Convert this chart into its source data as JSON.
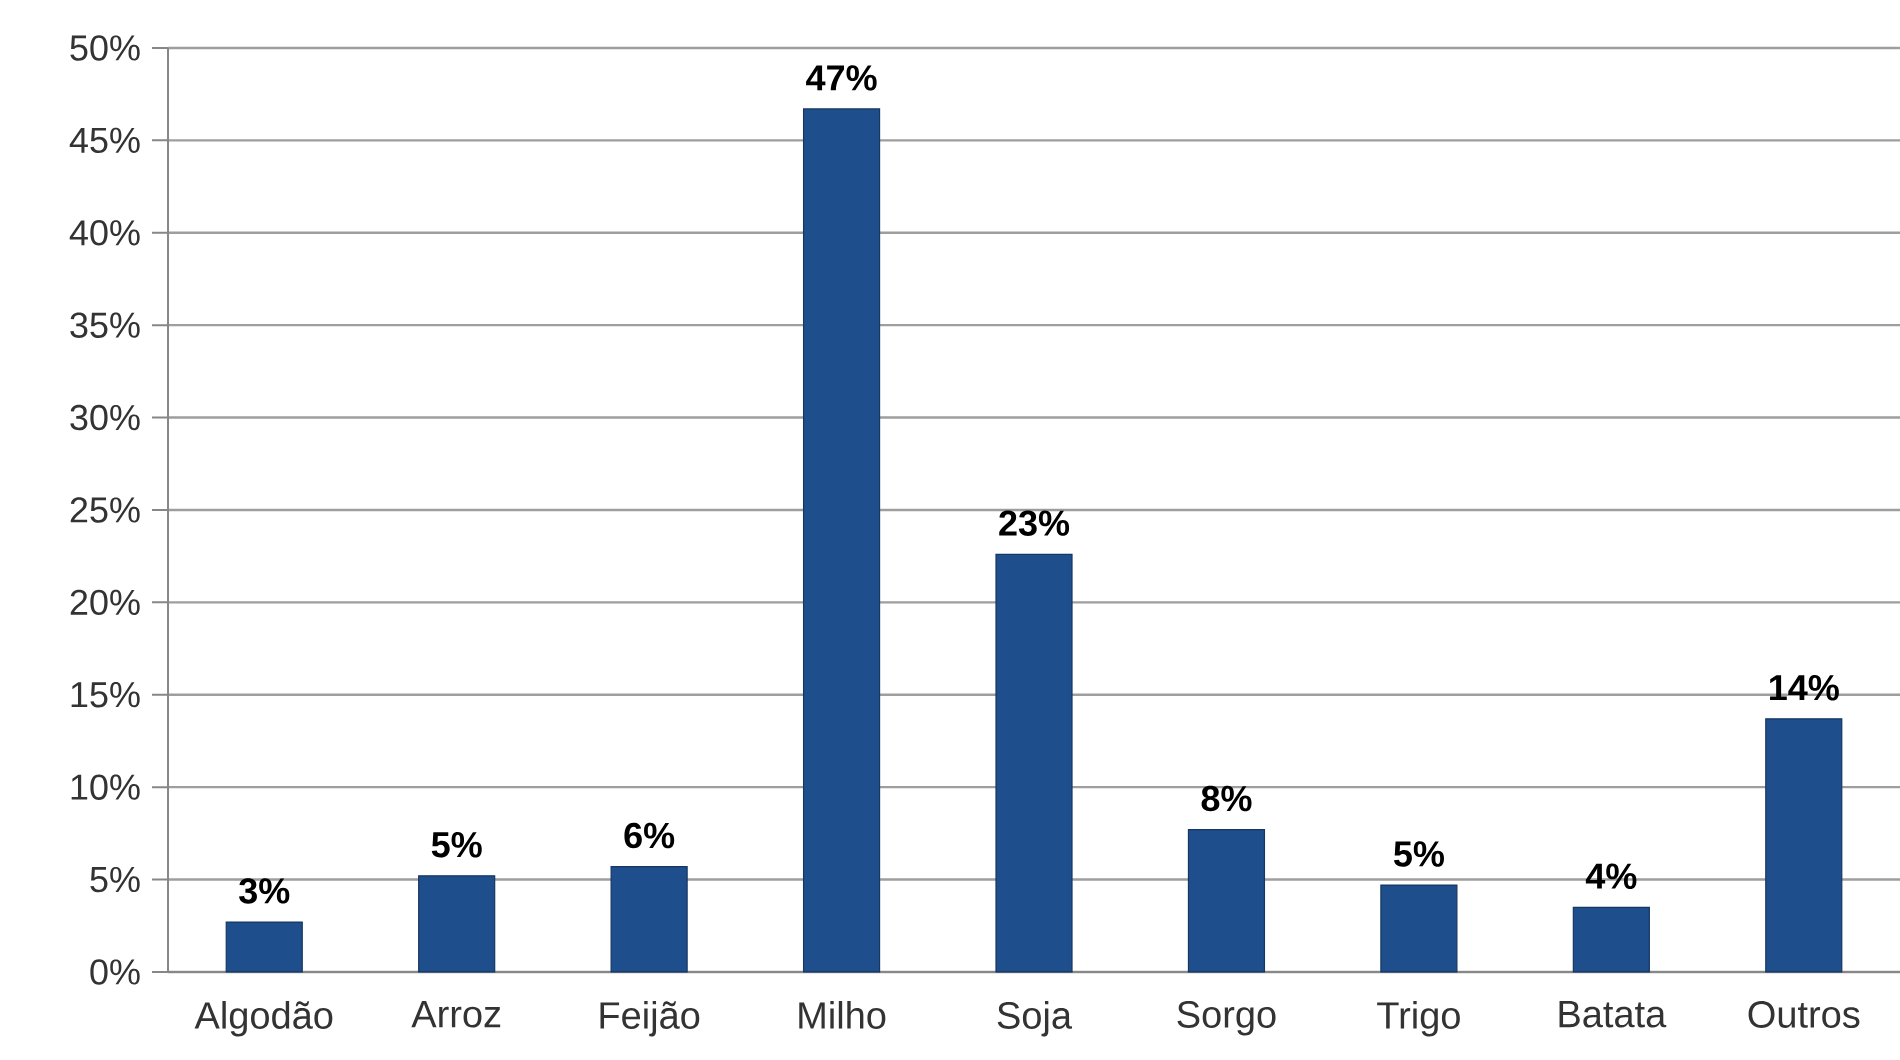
{
  "chart_data": {
    "type": "bar",
    "categories": [
      "Algodão",
      "Arroz",
      "Feijão",
      "Milho",
      "Soja",
      "Sorgo",
      "Trigo",
      "Batata",
      "Outros"
    ],
    "values": [
      2.7,
      5.2,
      5.7,
      46.7,
      22.6,
      7.7,
      4.7,
      3.5,
      13.7
    ],
    "value_labels": [
      "3%",
      "5%",
      "6%",
      "47%",
      "23%",
      "8%",
      "5%",
      "4%",
      "14%"
    ],
    "color": "#1f4e8c",
    "ylim": [
      0,
      50
    ],
    "yticks": [
      {
        "value": 0,
        "label": "0%"
      },
      {
        "value": 5,
        "label": "5%"
      },
      {
        "value": 10,
        "label": "10%"
      },
      {
        "value": 15,
        "label": "15%"
      },
      {
        "value": 20,
        "label": "20%"
      },
      {
        "value": 25,
        "label": "25%"
      },
      {
        "value": 30,
        "label": "30%"
      },
      {
        "value": 35,
        "label": "35%"
      },
      {
        "value": 40,
        "label": "40%"
      },
      {
        "value": 45,
        "label": "45%"
      },
      {
        "value": 50,
        "label": "50%"
      }
    ],
    "grid": "y"
  }
}
